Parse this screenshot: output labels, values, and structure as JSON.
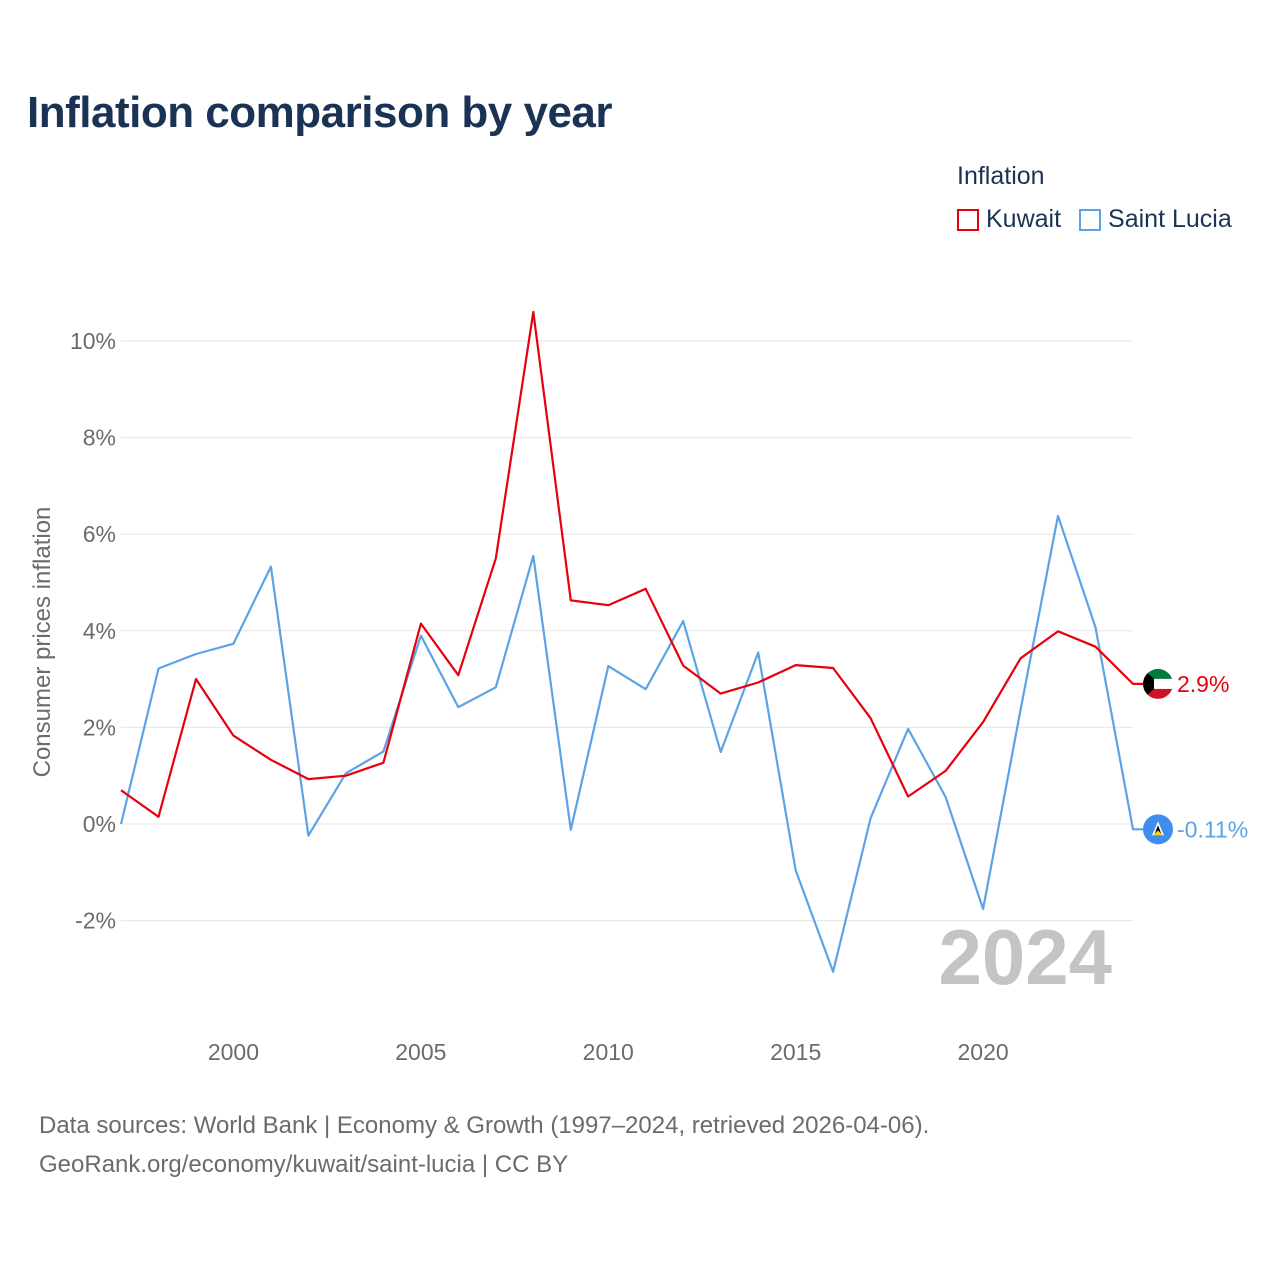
{
  "title": "Inflation comparison by year",
  "legend": {
    "title": "Inflation",
    "items": [
      {
        "label": "Kuwait",
        "color": "#e8000b"
      },
      {
        "label": "Saint Lucia",
        "color": "#5ba3e6"
      }
    ]
  },
  "chart_data": {
    "type": "line",
    "title": "Inflation comparison by year",
    "xlabel": "",
    "ylabel": "Consumer prices inflation",
    "xlim": [
      1997,
      2024
    ],
    "ylim": [
      -4,
      11
    ],
    "yticks": [
      -2,
      0,
      2,
      4,
      6,
      8,
      10
    ],
    "ytick_labels": [
      "-2%",
      "0%",
      "2%",
      "4%",
      "6%",
      "8%",
      "10%"
    ],
    "xticks": [
      2000,
      2005,
      2010,
      2015,
      2020
    ],
    "xtick_labels": [
      "2000",
      "2005",
      "2010",
      "2015",
      "2020"
    ],
    "x": [
      1997,
      1998,
      1999,
      2000,
      2001,
      2002,
      2003,
      2004,
      2005,
      2006,
      2007,
      2008,
      2009,
      2010,
      2011,
      2012,
      2013,
      2014,
      2015,
      2016,
      2017,
      2018,
      2019,
      2020,
      2021,
      2022,
      2023,
      2024
    ],
    "series": [
      {
        "name": "Kuwait",
        "color": "#e8000b",
        "end_label": "2.9%",
        "flag": "kuwait",
        "values": [
          0.7,
          0.15,
          3.0,
          1.83,
          1.33,
          0.93,
          1.0,
          1.27,
          4.15,
          3.08,
          5.5,
          10.6,
          4.63,
          4.53,
          4.87,
          3.28,
          2.7,
          2.93,
          3.29,
          3.23,
          2.19,
          0.57,
          1.1,
          2.11,
          3.43,
          3.99,
          3.67,
          2.9
        ]
      },
      {
        "name": "Saint Lucia",
        "color": "#5ba3e6",
        "end_label": "-0.11%",
        "flag": "saint-lucia",
        "values": [
          0.0,
          3.22,
          3.52,
          3.73,
          5.33,
          -0.24,
          1.05,
          1.5,
          3.9,
          2.42,
          2.83,
          5.55,
          -0.12,
          3.27,
          2.79,
          4.2,
          1.49,
          3.55,
          -0.96,
          -3.06,
          0.12,
          1.97,
          0.56,
          -1.76,
          2.37,
          6.38,
          4.07,
          -0.11
        ]
      }
    ],
    "year_watermark": "2024"
  },
  "footer": {
    "line1": "Data sources: World Bank | Economy & Growth (1997–2024, retrieved 2026-04-06).",
    "line2": "GeoRank.org/economy/kuwait/saint-lucia | CC BY"
  }
}
